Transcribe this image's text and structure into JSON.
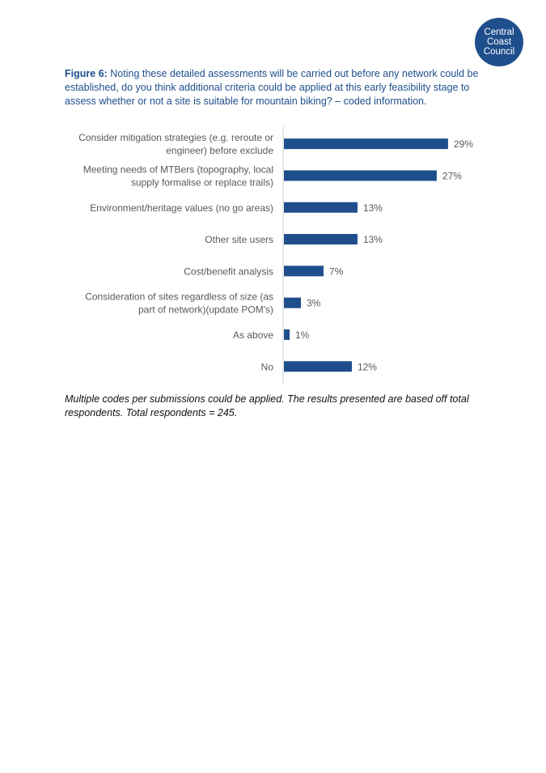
{
  "logo": {
    "line1": "Central",
    "line2": "Coast",
    "line3": "Council"
  },
  "figure": {
    "label": "Figure 6:",
    "text": "Noting these detailed assessments will be carried out before any network could be established, do you think additional criteria could be applied at this early feasibility stage to assess whether or not a site is suitable for mountain biking? – coded information."
  },
  "note": "Multiple codes per submissions could be applied. The results presented are based off total respondents. Total respondents = 245.",
  "colors": {
    "bar": "#1f4e8c",
    "caption": "#1f4e8c",
    "text": "#595959",
    "axis": "#d0d0d0"
  },
  "chart_data": {
    "type": "bar",
    "orientation": "horizontal",
    "categories": [
      [
        "Consider mitigation strategies (e.g. reroute or",
        "engineer) before exclude"
      ],
      [
        "Meeting needs of MTBers (topography, local",
        "supply formalise or replace trails)"
      ],
      [
        "Environment/heritage values  (no go areas)"
      ],
      [
        "Other site users"
      ],
      [
        "Cost/benefit analysis"
      ],
      [
        "Consideration of  sites regardless of size (as",
        "part of network)(update POM's)"
      ],
      [
        "As above"
      ],
      [
        "No"
      ]
    ],
    "values": [
      29,
      27,
      13,
      13,
      7,
      3,
      1,
      12
    ],
    "labels": [
      "29%",
      "27%",
      "13%",
      "13%",
      "7%",
      "3%",
      "1%",
      "12%"
    ],
    "unit": "%",
    "xlim": [
      0,
      30
    ],
    "grid": false,
    "legend": "none"
  }
}
